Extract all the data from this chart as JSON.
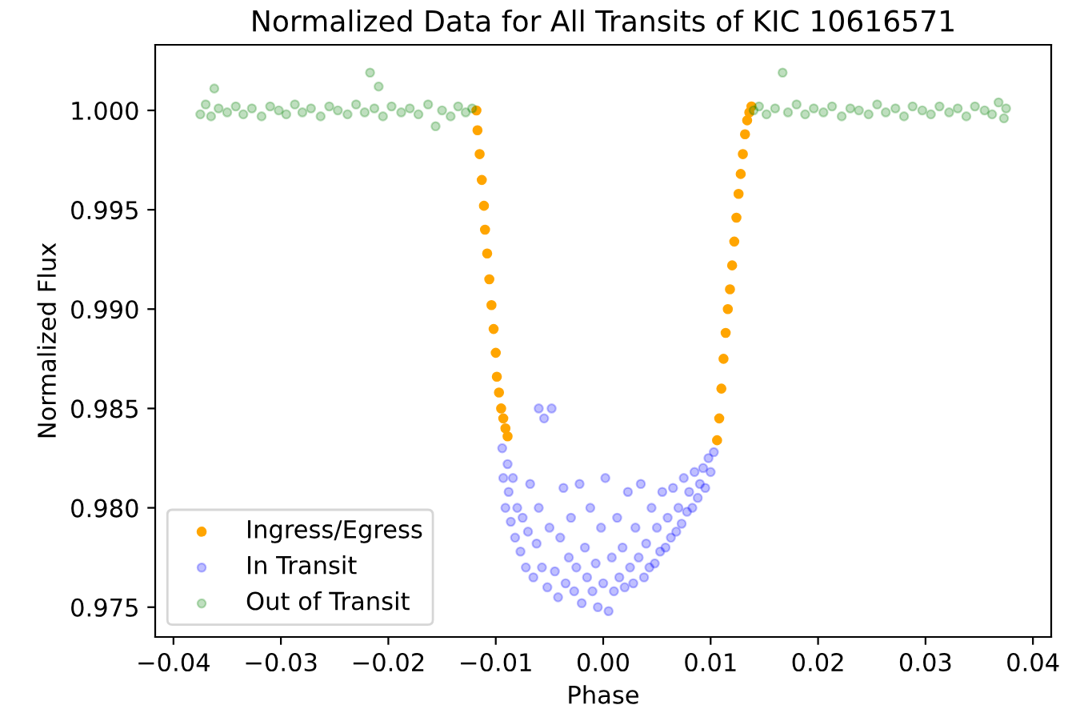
{
  "chart_data": {
    "type": "scatter",
    "title": "Normalized Data for All Transits of KIC 10616571",
    "xlabel": "Phase",
    "ylabel": "Normalized Flux",
    "xlim": [
      -0.0417,
      0.0417
    ],
    "ylim": [
      0.9735,
      1.0033
    ],
    "xticks": [
      {
        "value": -0.04,
        "label": "−0.04"
      },
      {
        "value": -0.03,
        "label": "−0.03"
      },
      {
        "value": -0.02,
        "label": "−0.02"
      },
      {
        "value": -0.01,
        "label": "−0.01"
      },
      {
        "value": 0,
        "label": "0.00"
      },
      {
        "value": 0.01,
        "label": "0.01"
      },
      {
        "value": 0.02,
        "label": "0.02"
      },
      {
        "value": 0.03,
        "label": "0.03"
      },
      {
        "value": 0.04,
        "label": "0.04"
      }
    ],
    "yticks": [
      {
        "value": 0.975,
        "label": "0.975"
      },
      {
        "value": 0.98,
        "label": "0.980"
      },
      {
        "value": 0.985,
        "label": "0.985"
      },
      {
        "value": 0.99,
        "label": "0.990"
      },
      {
        "value": 0.995,
        "label": "0.995"
      },
      {
        "value": 1.0,
        "label": "1.000"
      }
    ],
    "grid": false,
    "legend": "bottom left",
    "marker": "circle",
    "series": [
      {
        "name": "Ingress/Egress",
        "color": "#ffa500",
        "x": [
          -0.0118,
          -0.0117,
          -0.0115,
          -0.0113,
          -0.0111,
          -0.011,
          -0.0108,
          -0.0106,
          -0.0104,
          -0.0102,
          -0.01,
          -0.0099,
          -0.0097,
          -0.0095,
          -0.0093,
          -0.0091,
          -0.0089,
          0.0106,
          0.0108,
          0.011,
          0.0112,
          0.0114,
          0.0116,
          0.0118,
          0.012,
          0.0122,
          0.0124,
          0.0126,
          0.0128,
          0.013,
          0.0132,
          0.0134,
          0.0136,
          0.0138
        ],
        "values": [
          1.0,
          0.999,
          0.9978,
          0.9965,
          0.9952,
          0.994,
          0.9928,
          0.9915,
          0.9902,
          0.989,
          0.9878,
          0.9866,
          0.9858,
          0.985,
          0.9845,
          0.984,
          0.9836,
          0.9834,
          0.9845,
          0.986,
          0.9875,
          0.9888,
          0.99,
          0.991,
          0.9922,
          0.9934,
          0.9946,
          0.9958,
          0.9968,
          0.9978,
          0.9988,
          0.9995,
          0.9999,
          1.0002
        ]
      },
      {
        "name": "In Transit",
        "color": "#0000ff",
        "x": [
          -0.0094,
          -0.0093,
          -0.0091,
          -0.0089,
          -0.0088,
          -0.0086,
          -0.0084,
          -0.0082,
          -0.008,
          -0.0077,
          -0.0075,
          -0.0072,
          -0.007,
          -0.0068,
          -0.0065,
          -0.0062,
          -0.006,
          -0.006,
          -0.0057,
          -0.0055,
          -0.0052,
          -0.005,
          -0.0048,
          -0.0045,
          -0.0042,
          -0.004,
          -0.0037,
          -0.0035,
          -0.0032,
          -0.003,
          -0.0027,
          -0.0025,
          -0.0022,
          -0.002,
          -0.0017,
          -0.0015,
          -0.0012,
          -0.001,
          -0.0007,
          -0.0005,
          -0.0002,
          0.0,
          0.0002,
          0.0005,
          0.0008,
          0.001,
          0.0013,
          0.0015,
          0.0018,
          0.002,
          0.0023,
          0.0025,
          0.0028,
          0.003,
          0.0033,
          0.0035,
          0.0038,
          0.004,
          0.0043,
          0.0045,
          0.0048,
          0.005,
          0.0053,
          0.0055,
          0.0058,
          0.006,
          0.0063,
          0.0065,
          0.0068,
          0.007,
          0.0073,
          0.0075,
          0.0078,
          0.008,
          0.0083,
          0.0085,
          0.0088,
          0.009,
          0.0093,
          0.0095,
          0.0098,
          0.01,
          0.0103
        ],
        "values": [
          0.983,
          0.9815,
          0.98,
          0.9822,
          0.9808,
          0.9793,
          0.9815,
          0.9785,
          0.98,
          0.9778,
          0.9795,
          0.977,
          0.9788,
          0.9812,
          0.9765,
          0.9782,
          0.98,
          0.985,
          0.977,
          0.9845,
          0.976,
          0.979,
          0.985,
          0.9768,
          0.9755,
          0.9785,
          0.981,
          0.9762,
          0.9775,
          0.9795,
          0.9758,
          0.977,
          0.9812,
          0.9752,
          0.978,
          0.9765,
          0.98,
          0.9758,
          0.9772,
          0.975,
          0.979,
          0.9762,
          0.9815,
          0.9748,
          0.9775,
          0.9758,
          0.9795,
          0.9765,
          0.978,
          0.976,
          0.9808,
          0.977,
          0.9762,
          0.979,
          0.9775,
          0.9812,
          0.9765,
          0.9782,
          0.977,
          0.98,
          0.9772,
          0.979,
          0.9778,
          0.9808,
          0.978,
          0.9795,
          0.9785,
          0.981,
          0.9788,
          0.98,
          0.9792,
          0.9815,
          0.9798,
          0.9808,
          0.98,
          0.9818,
          0.9805,
          0.9812,
          0.982,
          0.981,
          0.9825,
          0.9818,
          0.9828
        ]
      },
      {
        "name": "Out of Transit",
        "color": "#008000",
        "x": [
          -0.0375,
          -0.037,
          -0.0365,
          -0.0362,
          -0.0358,
          -0.035,
          -0.0342,
          -0.0335,
          -0.0327,
          -0.0318,
          -0.031,
          -0.0302,
          -0.0295,
          -0.0287,
          -0.028,
          -0.0272,
          -0.0263,
          -0.0255,
          -0.0247,
          -0.0238,
          -0.023,
          -0.0222,
          -0.0217,
          -0.0213,
          -0.0209,
          -0.0205,
          -0.0197,
          -0.0188,
          -0.018,
          -0.0172,
          -0.0163,
          -0.0156,
          -0.015,
          -0.0142,
          -0.0135,
          -0.0128,
          -0.0122,
          0.014,
          0.0145,
          0.0152,
          0.016,
          0.0167,
          0.0172,
          0.018,
          0.0188,
          0.0196,
          0.0205,
          0.0213,
          0.0222,
          0.023,
          0.0238,
          0.0247,
          0.0255,
          0.0263,
          0.0272,
          0.028,
          0.0288,
          0.0297,
          0.0305,
          0.0313,
          0.0322,
          0.033,
          0.0338,
          0.0346,
          0.0355,
          0.0362,
          0.0368,
          0.0373,
          0.0375
        ],
        "values": [
          0.9998,
          1.0003,
          0.9997,
          1.0011,
          1.0001,
          0.9999,
          1.0002,
          0.9998,
          1.0001,
          0.9997,
          1.0002,
          1.0,
          0.9998,
          1.0003,
          0.9999,
          1.0001,
          0.9997,
          1.0002,
          1.0,
          0.9998,
          1.0003,
          0.9999,
          1.0019,
          1.0001,
          1.0012,
          0.9997,
          1.0002,
          0.9999,
          1.0001,
          0.9998,
          1.0003,
          0.9992,
          1.0,
          0.9997,
          1.0002,
          0.9999,
          1.0001,
          1.0,
          1.0002,
          0.9998,
          1.0001,
          1.0019,
          0.9999,
          1.0003,
          0.9998,
          1.0001,
          0.9999,
          1.0002,
          0.9997,
          1.0001,
          1.0,
          0.9998,
          1.0003,
          0.9999,
          1.0001,
          0.9997,
          1.0002,
          1.0,
          0.9998,
          1.0002,
          0.9999,
          1.0001,
          0.9997,
          1.0002,
          1.0,
          0.9998,
          1.0004,
          0.9996,
          1.0001
        ]
      }
    ]
  }
}
